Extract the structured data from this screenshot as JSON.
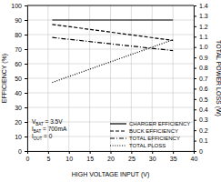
{
  "chart_data": {
    "type": "line",
    "x": [
      6,
      35
    ],
    "series": [
      {
        "name": "CHARGER EFFICIENCY",
        "color": "#000000",
        "line_style": "solid",
        "values": [
          90,
          90
        ]
      },
      {
        "name": "BUCK EFFICIENCY",
        "color": "#000000",
        "line_style": "dashed",
        "values": [
          87,
          76
        ]
      },
      {
        "name": "TOTAL EFFICIENCY",
        "color": "#000000",
        "line_style": "dashdot",
        "values": [
          78,
          69
        ]
      },
      {
        "name": "TOTAL PLOSS",
        "color": "#000000",
        "line_style": "dotted",
        "values": [
          0.66,
          1.07
        ],
        "axis": "y2"
      }
    ],
    "xlabel": "HIGH VOLTAGE INPUT (V)",
    "ylabel": "EFFICIENCY (%)",
    "y2label": "TOTAL POWER LOSS (W)",
    "xlim": [
      0,
      40
    ],
    "xticks": [
      0,
      5,
      10,
      15,
      20,
      25,
      30,
      35,
      40
    ],
    "ylim": [
      0,
      100
    ],
    "yticks": [
      0,
      10,
      20,
      30,
      40,
      50,
      60,
      70,
      80,
      90,
      100
    ],
    "y2lim": [
      0,
      1.4
    ],
    "y2ticks": [
      0,
      0.1,
      0.2,
      0.3,
      0.4,
      0.5,
      0.6,
      0.7,
      0.8,
      0.9,
      {
        "value": 1,
        "label": "1.0"
      },
      1.1,
      1.2,
      1.3,
      1.4
    ],
    "grid": true,
    "legend": "lower right",
    "annotations": [
      "VBAT = 3.5V",
      "IBAT = 700mA",
      "IOUT = 0"
    ]
  }
}
